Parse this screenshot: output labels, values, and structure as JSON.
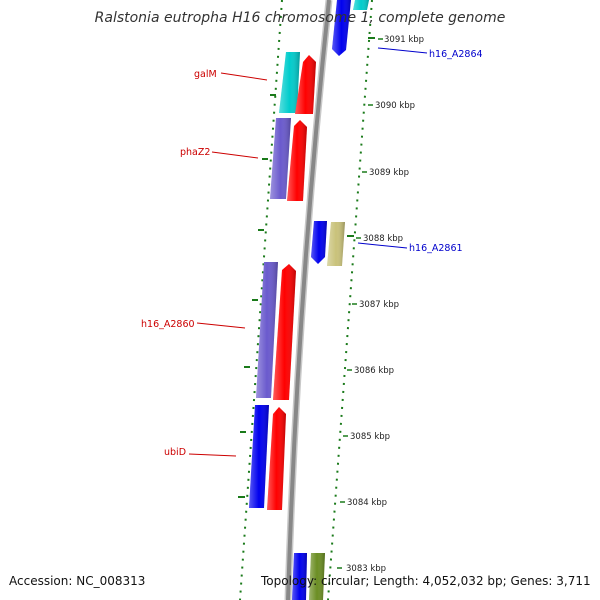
{
  "title": "Ralstonia eutropha H16 chromosome 1, complete genome",
  "footer": {
    "accession": "Accession: NC_008313",
    "topology": "Topology: circular; Length: 4,052,032 bp; Genes: 3,711"
  },
  "colors": {
    "background": "#ffffff",
    "backbone": "#888888",
    "gc_ticks": "#1a7a1a",
    "label_red": "#cc0000",
    "label_blue": "#0000cc",
    "gene_red": "#ff0000",
    "gene_blue": "#0000ee",
    "gene_purple": "#6a5acd",
    "gene_cyan": "#00cccc",
    "gene_khaki": "#c9c27a",
    "gene_olive": "#6b8e23"
  },
  "ticks": [
    "3091 kbp",
    "3090 kbp",
    "3089 kbp",
    "3088 kbp",
    "3087 kbp",
    "3086 kbp",
    "3085 kbp",
    "3084 kbp",
    "3083 kbp"
  ],
  "labels": [
    {
      "text": "galM",
      "color": "red",
      "side": "left"
    },
    {
      "text": "phaZ2",
      "color": "red",
      "side": "left"
    },
    {
      "text": "h16_A2860",
      "color": "red",
      "side": "left"
    },
    {
      "text": "ubiD",
      "color": "red",
      "side": "left"
    },
    {
      "text": "h16_A2864",
      "color": "blue",
      "side": "right"
    },
    {
      "text": "h16_A2861",
      "color": "blue",
      "side": "right"
    }
  ]
}
